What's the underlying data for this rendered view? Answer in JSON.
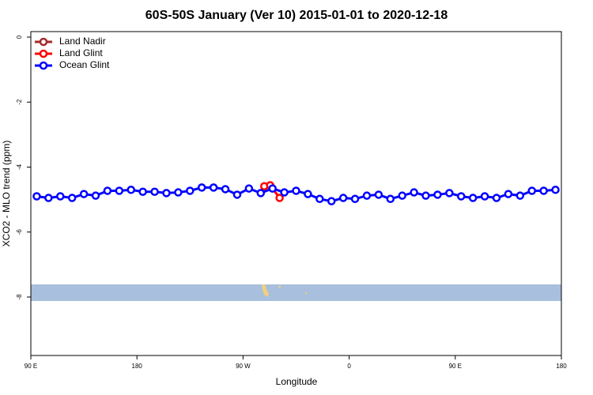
{
  "chart_data": {
    "type": "line",
    "title": "60S-50S January (Ver 10)   2015-01-01 to 2020-12-18",
    "xlabel": "Longitude",
    "ylabel": "XCO2 - MLO trend (ppm)",
    "xlim": [
      90,
      540
    ],
    "xticks": [
      {
        "value": 90,
        "label": "90 E"
      },
      180,
      {
        "value": 270,
        "label": "90 W"
      },
      {
        "value": 360,
        "label": "0"
      },
      {
        "value": 450,
        "label": "90 E"
      },
      {
        "value": 540,
        "label": "180"
      }
    ],
    "ylim": [
      -9.8,
      0.17
    ],
    "yticks": [
      0,
      -2,
      -4,
      -6,
      -8
    ],
    "legend": "top-left",
    "series": [
      {
        "name": "Land Nadir",
        "color": "#a52a2a",
        "x": [],
        "values": []
      },
      {
        "name": "Land Glint",
        "color": "#ff0000",
        "x": [
          288,
          293,
          301
        ],
        "values": [
          -4.59,
          -4.56,
          -4.95
        ]
      },
      {
        "name": "Ocean Glint",
        "color": "#0000ff",
        "x": [
          95,
          105,
          115,
          125,
          135,
          145,
          155,
          165,
          175,
          185,
          195,
          205,
          215,
          225,
          235,
          245,
          255,
          265,
          275,
          285,
          295,
          305,
          315,
          325,
          335,
          345,
          355,
          365,
          375,
          385,
          395,
          405,
          415,
          425,
          435,
          445,
          455,
          465,
          475,
          485,
          495,
          505,
          515,
          525,
          535
        ],
        "values": [
          -4.9,
          -4.95,
          -4.9,
          -4.95,
          -4.83,
          -4.88,
          -4.73,
          -4.73,
          -4.7,
          -4.76,
          -4.76,
          -4.8,
          -4.78,
          -4.73,
          -4.63,
          -4.63,
          -4.68,
          -4.85,
          -4.66,
          -4.8,
          -4.66,
          -4.78,
          -4.73,
          -4.83,
          -4.98,
          -5.05,
          -4.95,
          -4.98,
          -4.88,
          -4.85,
          -4.98,
          -4.88,
          -4.78,
          -4.88,
          -4.85,
          -4.8,
          -4.9,
          -4.95,
          -4.9,
          -4.95,
          -4.83,
          -4.88,
          -4.73,
          -4.73,
          -4.7
        ]
      }
    ]
  }
}
